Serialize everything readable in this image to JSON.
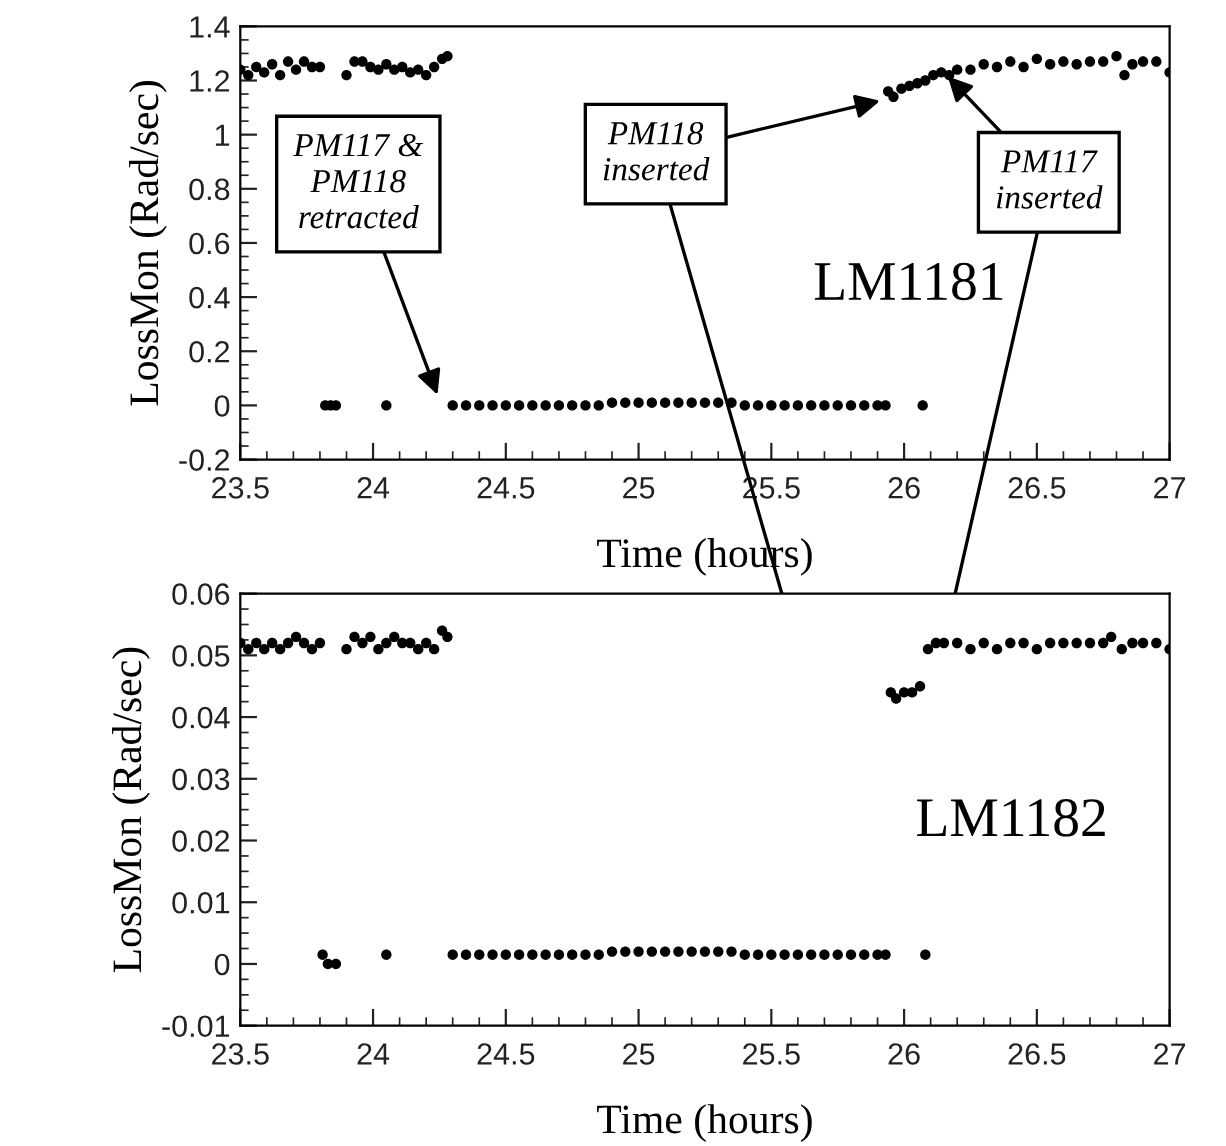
{
  "chart_data": [
    {
      "type": "scatter",
      "xlabel": "Time (hours)",
      "ylabel": "LossMon (Rad/sec)",
      "marker": "circle",
      "grid": false,
      "xlim": [
        23.5,
        27
      ],
      "xticks": [
        23.5,
        24,
        24.5,
        25,
        25.5,
        26,
        26.5,
        27
      ],
      "ylim": [
        -0.2,
        1.4
      ],
      "yticks": [
        -0.2,
        0,
        0.2,
        0.4,
        0.6,
        0.8,
        1,
        1.2,
        1.4
      ],
      "annotations": [
        {
          "text": "PM117 &\nPM118\nretracted",
          "x": 24.25,
          "y": 0.02
        },
        {
          "text": "PM118\ninserted",
          "x": 25.93,
          "y": 1.13
        },
        {
          "text": "PM117\ninserted",
          "x": 26.15,
          "y": 1.23
        },
        "LM1181"
      ],
      "series": [
        {
          "color": "#000000",
          "x": [
            23.5,
            23.53,
            23.56,
            23.59,
            23.62,
            23.65,
            23.68,
            23.71,
            23.74,
            23.77,
            23.8,
            23.9,
            23.93,
            23.96,
            23.99,
            24.02,
            24.05,
            24.08,
            24.11,
            24.14,
            24.17,
            24.2,
            24.23,
            24.26,
            24.28,
            23.82,
            23.84,
            23.86,
            24.05,
            24.3,
            24.35,
            24.4,
            24.45,
            24.5,
            24.55,
            24.6,
            24.65,
            24.7,
            24.75,
            24.8,
            24.85,
            24.9,
            24.95,
            25.0,
            25.05,
            25.1,
            25.15,
            25.2,
            25.25,
            25.3,
            25.35,
            25.4,
            25.45,
            25.5,
            25.55,
            25.6,
            25.65,
            25.7,
            25.75,
            25.8,
            25.85,
            25.9,
            25.93,
            26.07,
            25.94,
            25.96,
            25.99,
            26.02,
            26.05,
            26.08,
            26.11,
            26.14,
            26.17,
            26.2,
            26.25,
            26.3,
            26.35,
            26.4,
            26.45,
            26.5,
            26.55,
            26.6,
            26.65,
            26.7,
            26.75,
            26.8,
            26.83,
            26.86,
            26.9,
            26.95,
            27.0
          ],
          "values": [
            1.24,
            1.22,
            1.25,
            1.23,
            1.26,
            1.22,
            1.27,
            1.24,
            1.27,
            1.25,
            1.25,
            1.22,
            1.27,
            1.27,
            1.25,
            1.24,
            1.26,
            1.24,
            1.25,
            1.23,
            1.24,
            1.22,
            1.25,
            1.28,
            1.29,
            0,
            0,
            0,
            0,
            0,
            0,
            0,
            0,
            0,
            0,
            0,
            0,
            0,
            0,
            0,
            0,
            0.01,
            0.01,
            0.01,
            0.01,
            0.01,
            0.01,
            0.01,
            0.01,
            0.01,
            0.01,
            0,
            0,
            0,
            0,
            0,
            0,
            0,
            0,
            0,
            0,
            0,
            0,
            0,
            1.16,
            1.14,
            1.17,
            1.18,
            1.19,
            1.2,
            1.22,
            1.23,
            1.22,
            1.24,
            1.24,
            1.26,
            1.25,
            1.27,
            1.25,
            1.28,
            1.26,
            1.27,
            1.26,
            1.27,
            1.27,
            1.29,
            1.22,
            1.26,
            1.27,
            1.27,
            1.23
          ]
        }
      ]
    },
    {
      "type": "scatter",
      "xlabel": "Time (hours)",
      "ylabel": "LossMon (Rad/sec)",
      "marker": "circle",
      "grid": false,
      "xlim": [
        23.5,
        27
      ],
      "xticks": [
        23.5,
        24,
        24.5,
        25,
        25.5,
        26,
        26.5,
        27
      ],
      "ylim": [
        -0.01,
        0.06
      ],
      "yticks": [
        -0.01,
        0,
        0.01,
        0.02,
        0.03,
        0.04,
        0.05,
        0.06
      ],
      "annotations": [
        "LM1182"
      ],
      "series": [
        {
          "color": "#000000",
          "x": [
            23.5,
            23.53,
            23.56,
            23.59,
            23.62,
            23.65,
            23.68,
            23.71,
            23.74,
            23.77,
            23.8,
            23.9,
            23.93,
            23.96,
            23.99,
            24.02,
            24.05,
            24.08,
            24.11,
            24.14,
            24.17,
            24.2,
            24.23,
            24.26,
            24.28,
            23.81,
            23.83,
            23.86,
            24.05,
            24.3,
            24.35,
            24.4,
            24.45,
            24.5,
            24.55,
            24.6,
            24.65,
            24.7,
            24.75,
            24.8,
            24.85,
            24.9,
            24.95,
            25.0,
            25.05,
            25.1,
            25.15,
            25.2,
            25.25,
            25.3,
            25.35,
            25.4,
            25.45,
            25.5,
            25.55,
            25.6,
            25.65,
            25.7,
            25.75,
            25.8,
            25.85,
            25.9,
            25.93,
            25.95,
            25.97,
            26.0,
            26.03,
            26.06,
            26.08,
            26.09,
            26.12,
            26.15,
            26.2,
            26.25,
            26.3,
            26.35,
            26.4,
            26.45,
            26.5,
            26.55,
            26.6,
            26.65,
            26.7,
            26.75,
            26.78,
            26.82,
            26.86,
            26.9,
            26.95,
            27.0
          ],
          "values": [
            0.052,
            0.051,
            0.052,
            0.051,
            0.052,
            0.051,
            0.052,
            0.053,
            0.052,
            0.051,
            0.052,
            0.051,
            0.053,
            0.052,
            0.053,
            0.051,
            0.052,
            0.053,
            0.052,
            0.052,
            0.051,
            0.052,
            0.051,
            0.054,
            0.053,
            0.0015,
            0,
            0,
            0.0015,
            0.0015,
            0.0015,
            0.0015,
            0.0015,
            0.0015,
            0.0015,
            0.0015,
            0.0015,
            0.0015,
            0.0015,
            0.0015,
            0.0015,
            0.002,
            0.002,
            0.002,
            0.002,
            0.002,
            0.002,
            0.002,
            0.002,
            0.002,
            0.002,
            0.0015,
            0.0015,
            0.0015,
            0.0015,
            0.0015,
            0.0015,
            0.0015,
            0.0015,
            0.0015,
            0.0015,
            0.0015,
            0.0015,
            0.044,
            0.043,
            0.044,
            0.044,
            0.045,
            0.0015,
            0.051,
            0.052,
            0.052,
            0.052,
            0.051,
            0.052,
            0.051,
            0.052,
            0.052,
            0.051,
            0.052,
            0.052,
            0.052,
            0.052,
            0.052,
            0.053,
            0.051,
            0.052,
            0.052,
            0.052,
            0.051
          ]
        }
      ]
    }
  ]
}
